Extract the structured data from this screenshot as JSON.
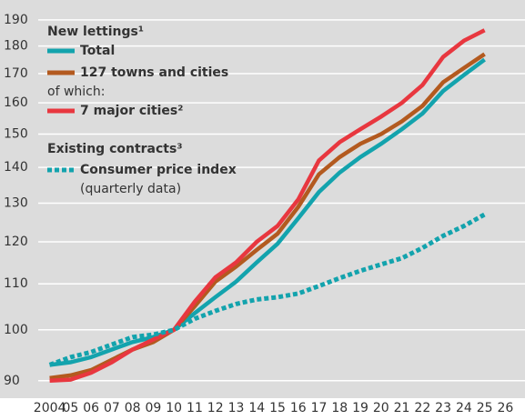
{
  "chart_data": {
    "type": "line",
    "legend_texts": [
      "New lettings¹",
      "of which:",
      "Existing contracts³",
      "(quarterly data)"
    ],
    "x": [
      2004,
      2005,
      2006,
      2007,
      2008,
      2009,
      2010,
      2011,
      2012,
      2013,
      2014,
      2015,
      2016,
      2017,
      2018,
      2019,
      2020,
      2021,
      2022,
      2023,
      2024,
      2025
    ],
    "series": [
      {
        "name": "Total",
        "color": "#13a3ad",
        "dash": false,
        "values": [
          93,
          93.5,
          94.5,
          96,
          97.5,
          98.5,
          100,
          103.5,
          107,
          110.5,
          115,
          119.5,
          126,
          133,
          138.5,
          143,
          147,
          151.5,
          156.5,
          164,
          169.5,
          175
        ]
      },
      {
        "name": "127 towns and cities",
        "color": "#b35a1f",
        "dash": false,
        "values": [
          90.5,
          91,
          92,
          94,
          96,
          97.5,
          100,
          105,
          110.5,
          114,
          118,
          122,
          129,
          138,
          143,
          147,
          150,
          154,
          159,
          167,
          172,
          177
        ]
      },
      {
        "name": "7 major cities²",
        "color": "#e8373f",
        "dash": false,
        "values": [
          90,
          90.2,
          91.5,
          93.5,
          96,
          98,
          100,
          106,
          111.5,
          115,
          120,
          124,
          131,
          142,
          147.5,
          151.5,
          155.5,
          160,
          166,
          176,
          182,
          186
        ]
      },
      {
        "name": "Consumer price index",
        "color": "#13a3ad",
        "dash": true,
        "values": [
          93,
          94.5,
          95.5,
          97,
          98.5,
          99,
          100,
          102.3,
          104,
          105.5,
          106.5,
          107,
          107.8,
          109.5,
          111.3,
          113,
          114.5,
          116,
          118.5,
          121.5,
          124,
          127
        ]
      }
    ],
    "xlim": [
      2001.6,
      2026.95
    ],
    "xticks": [
      2004,
      {
        "value": 2005,
        "label": "05"
      },
      {
        "value": 2006,
        "label": "06"
      },
      {
        "value": 2007,
        "label": "07"
      },
      {
        "value": 2008,
        "label": "08"
      },
      {
        "value": 2009,
        "label": "09"
      },
      {
        "value": 2010,
        "label": "10"
      },
      {
        "value": 2011,
        "label": "11"
      },
      {
        "value": 2012,
        "label": "12"
      },
      {
        "value": 2013,
        "label": "13"
      },
      {
        "value": 2014,
        "label": "14"
      },
      {
        "value": 2015,
        "label": "15"
      },
      {
        "value": 2016,
        "label": "16"
      },
      {
        "value": 2017,
        "label": "17"
      },
      {
        "value": 2018,
        "label": "18"
      },
      {
        "value": 2019,
        "label": "19"
      },
      {
        "value": 2020,
        "label": "20"
      },
      {
        "value": 2021,
        "label": "21"
      },
      {
        "value": 2022,
        "label": "22"
      },
      {
        "value": 2023,
        "label": "23"
      },
      {
        "value": 2024,
        "label": "24"
      },
      {
        "value": 2025,
        "label": "25"
      },
      {
        "value": 2026,
        "label": "26"
      }
    ],
    "ylim": [
      86.8,
      198
    ],
    "yticks": [
      90,
      100,
      110,
      120,
      130,
      140,
      150,
      160,
      170,
      180,
      190
    ],
    "log_scale": true,
    "grid": true
  }
}
